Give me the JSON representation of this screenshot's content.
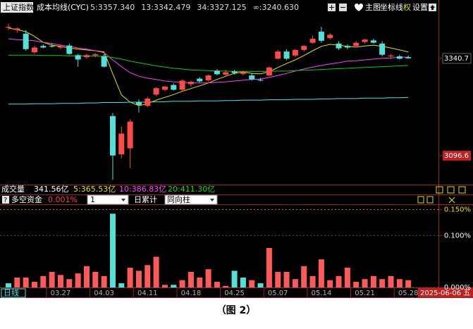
{
  "header": {
    "symbol": "上证指数",
    "indicator": "成本均线(CYC)",
    "buttons": [
      "主图",
      "坐标线",
      "权",
      "设置"
    ]
  },
  "volume_header": {
    "name": "成交量",
    "value": "341.56亿",
    "averages": [
      "5:365.53亿",
      "10:386.83亿",
      "20:411.30亿"
    ]
  },
  "indicator_header": {
    "help": "?",
    "name": "多空资金",
    "value": "0.001%",
    "period": "1",
    "mode": "日累计",
    "style": "同向柱"
  },
  "footer": {
    "period": "日线",
    "cursor_date": "2025-06-06 五"
  },
  "caption": "（图 2）",
  "chart_data": [
    {
      "type": "candlestick",
      "categories": [
        null,
        null,
        null,
        null,
        null,
        null,
        "03.27",
        null,
        null,
        null,
        null,
        "04.03",
        null,
        null,
        null,
        null,
        "04.11",
        null,
        null,
        null,
        null,
        "04.18",
        null,
        null,
        null,
        null,
        "04.25",
        null,
        null,
        null,
        null,
        "05.07",
        null,
        null,
        null,
        null,
        "05.14",
        null,
        null,
        null,
        null,
        "05.21",
        null,
        null,
        null,
        null,
        "05.28"
      ],
      "open": [
        3418,
        3412,
        3403,
        3356,
        3372,
        3372,
        3368,
        3373,
        3349,
        3344,
        3348,
        3346,
        3196,
        3100,
        3115,
        3230,
        3222,
        3250,
        3262,
        3274,
        3262,
        3276,
        3290,
        3286,
        3310,
        3300,
        3308,
        3302,
        3298,
        3287,
        3298,
        3340,
        3358,
        3348,
        3362,
        3380,
        3408,
        3392,
        3378,
        3372,
        3372,
        3382,
        3386,
        3378,
        3346,
        3346,
        3344
      ],
      "high": [
        3428,
        3418,
        3412,
        3372,
        3376,
        3378,
        3376,
        3378,
        3352,
        3352,
        3354,
        3352,
        3204,
        3170,
        3188,
        3238,
        3244,
        3268,
        3272,
        3278,
        3288,
        3285,
        3294,
        3300,
        3314,
        3312,
        3312,
        3310,
        3304,
        3292,
        3320,
        3362,
        3364,
        3364,
        3374,
        3398,
        3420,
        3404,
        3384,
        3376,
        3384,
        3390,
        3390,
        3384,
        3352,
        3350,
        3348
      ],
      "low": [
        3412,
        3405,
        3360,
        3352,
        3366,
        3368,
        3364,
        3350,
        3320,
        3340,
        3344,
        3318,
        3036,
        3090,
        3066,
        3205,
        3218,
        3246,
        3258,
        3260,
        3258,
        3270,
        3280,
        3283,
        3298,
        3296,
        3300,
        3298,
        3285,
        3283,
        3296,
        3338,
        3336,
        3344,
        3358,
        3378,
        3380,
        3388,
        3362,
        3364,
        3368,
        3378,
        3378,
        3346,
        3340,
        3338,
        3340
      ],
      "close": [
        3420,
        3416,
        3364,
        3368,
        3368,
        3370,
        3371,
        3352,
        3338,
        3349,
        3351,
        3320,
        3097,
        3152,
        3182,
        3224,
        3240,
        3266,
        3270,
        3262,
        3285,
        3282,
        3283,
        3298,
        3301,
        3306,
        3304,
        3306,
        3288,
        3285,
        3318,
        3358,
        3340,
        3362,
        3372,
        3390,
        3385,
        3400,
        3366,
        3368,
        3380,
        3388,
        3380,
        3350,
        3348,
        3340,
        3341
      ],
      "up_color": "#ff4a4a",
      "down_color": "#52e0d8",
      "lines": [
        {
          "label": "5:3357.340",
          "color": "#e8e000",
          "values": [
            3417,
            3413,
            3408,
            3396,
            3381,
            3374,
            3371,
            3367,
            3364,
            3362,
            3360,
            3357,
            3302,
            3249,
            3231,
            3222,
            3227,
            3236,
            3243,
            3250,
            3258,
            3265,
            3272,
            3279,
            3288,
            3296,
            3303,
            3307,
            3303,
            3302,
            3307,
            3318,
            3328,
            3337,
            3348,
            3360,
            3371,
            3376,
            3374,
            3371,
            3369,
            3372,
            3374,
            3371,
            3367,
            3362,
            3357
          ]
        },
        {
          "label": "13:3342.479",
          "color": "#ff40ff",
          "values": [
            3390,
            3388,
            3387,
            3385,
            3381,
            3378,
            3374,
            3371,
            3367,
            3364,
            3360,
            3355,
            3337,
            3320,
            3305,
            3296,
            3291,
            3288,
            3284,
            3282,
            3281,
            3279,
            3279,
            3279,
            3281,
            3282,
            3284,
            3286,
            3288,
            3289,
            3293,
            3298,
            3303,
            3309,
            3314,
            3319,
            3323,
            3327,
            3330,
            3334,
            3335,
            3337,
            3339,
            3341,
            3342,
            3344,
            3344
          ]
        },
        {
          "label": "34:3327.125",
          "color": "#00d000",
          "values": [
            3349,
            3349,
            3349,
            3349,
            3348,
            3348,
            3348,
            3347,
            3347,
            3347,
            3346,
            3346,
            3343,
            3339,
            3334,
            3330,
            3326,
            3322,
            3319,
            3316,
            3314,
            3312,
            3311,
            3310,
            3309,
            3309,
            3308,
            3308,
            3308,
            3308,
            3308,
            3309,
            3309,
            3310,
            3311,
            3312,
            3313,
            3314,
            3315,
            3316,
            3317,
            3318,
            3319,
            3320,
            3321,
            3322,
            3323
          ]
        },
        {
          "label": "∞:3240.630",
          "color": "#40e8e8",
          "values": [
            3226,
            3226,
            3226,
            3227,
            3227,
            3227,
            3228,
            3228,
            3228,
            3229,
            3229,
            3230,
            3230,
            3230,
            3231,
            3231,
            3231,
            3232,
            3232,
            3233,
            3233,
            3233,
            3234,
            3234,
            3234,
            3235,
            3235,
            3236,
            3236,
            3236,
            3237,
            3237,
            3237,
            3238,
            3238,
            3238,
            3239,
            3239,
            3240,
            3240,
            3240,
            3241,
            3241,
            3241,
            3242,
            3242,
            3243
          ]
        }
      ],
      "ylim": [
        3024,
        3452
      ],
      "yticks": [
        3340.7,
        3096.6
      ]
    },
    {
      "type": "bar",
      "values": [
        0.008,
        0.019,
        0.019,
        0.011,
        0.022,
        0.03,
        0.024,
        0.016,
        0.027,
        0.041,
        0.03,
        0.022,
        0.142,
        0.008,
        0.038,
        0.032,
        0.043,
        0.059,
        0.005,
        0.005,
        0.014,
        0.03,
        0.019,
        0.035,
        0.011,
        0.003,
        0.032,
        0.019,
        0.014,
        0.008,
        0.076,
        0.03,
        0.03,
        0.016,
        0.041,
        0.022,
        0.054,
        0.014,
        0.022,
        0.038,
        0.011,
        0.016,
        0.022,
        0.016,
        0.022,
        0.016,
        0.014
      ],
      "colors": [
        "#52e0d8",
        "#ff5a5a",
        "#ff5a5a",
        "#ff5a5a",
        "#ff5a5a",
        "#ff5a5a",
        "#ff5a5a",
        "#ff5a5a",
        "#ff5a5a",
        "#ff5a5a",
        "#ff5a5a",
        "#ff5a5a",
        "#52e0d8",
        "#52e0d8",
        "#ff5a5a",
        "#ff5a5a",
        "#ff5a5a",
        "#ff5a5a",
        "#ff5a5a",
        "#52e0d8",
        "#ff5a5a",
        "#ff5a5a",
        "#ff5a5a",
        "#ff5a5a",
        "#ff5a5a",
        "#ff5a5a",
        "#52e0d8",
        "#52e0d8",
        "#ff5a5a",
        "#52e0d8",
        "#ff5a5a",
        "#ff5a5a",
        "#ff5a5a",
        "#ff5a5a",
        "#ff5a5a",
        "#ff5a5a",
        "#ff5a5a",
        "#ff5a5a",
        "#ff5a5a",
        "#ff5a5a",
        "#ff5a5a",
        "#ff5a5a",
        "#ff5a5a",
        "#ff5a5a",
        "#ff5a5a",
        "#ff5a5a",
        "#ff5a5a"
      ],
      "ylim": [
        0,
        0.16
      ],
      "yticks": [
        {
          "value": 0.15,
          "label": "0.150%"
        },
        {
          "value": 0.1,
          "label": "0.100%"
        },
        {
          "value": 0,
          "label": "0.000%"
        }
      ]
    }
  ]
}
